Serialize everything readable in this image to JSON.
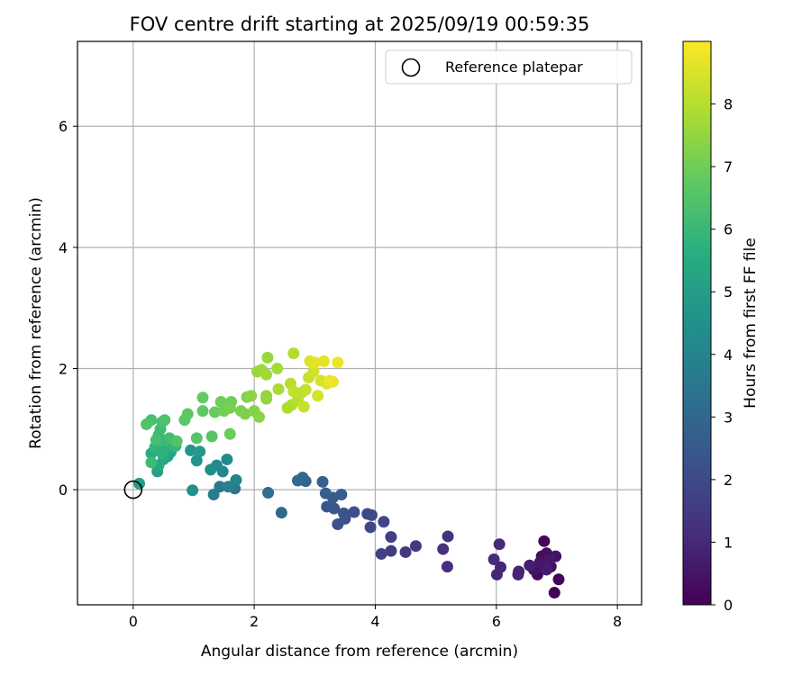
{
  "chart_data": {
    "type": "scatter",
    "title": "FOV centre drift starting at 2025/09/19 00:59:35",
    "xlabel": "Angular distance from reference (arcmin)",
    "ylabel": "Rotation from reference (arcmin)",
    "xlim": [
      -0.92,
      8.4
    ],
    "ylim": [
      -1.9,
      7.4
    ],
    "xticks": [
      0,
      2,
      4,
      6,
      8
    ],
    "yticks": [
      0,
      2,
      4,
      6
    ],
    "grid": true,
    "legend": {
      "placement": "top-right",
      "entries": [
        "Reference platepar"
      ]
    },
    "reference_point": {
      "x": 0,
      "y": 0,
      "label": "Reference platepar"
    },
    "colorbar": {
      "label": "Hours from first FF file",
      "colormap": "viridis",
      "range": [
        0,
        9
      ],
      "ticks": [
        0,
        1,
        2,
        3,
        4,
        5,
        6,
        7,
        8
      ]
    },
    "points": [
      [
        6.96,
        -1.7,
        0.05
      ],
      [
        7.03,
        -1.48,
        0.1
      ],
      [
        6.79,
        -0.85,
        0.15
      ],
      [
        6.68,
        -1.4,
        0.2
      ],
      [
        6.9,
        -1.27,
        0.25
      ],
      [
        6.75,
        -1.1,
        0.3
      ],
      [
        6.83,
        -1.05,
        0.35
      ],
      [
        6.98,
        -1.1,
        0.4
      ],
      [
        6.62,
        -1.32,
        0.45
      ],
      [
        6.78,
        -1.28,
        0.5
      ],
      [
        6.72,
        -1.2,
        0.55
      ],
      [
        6.88,
        -1.15,
        0.6
      ],
      [
        6.83,
        -1.32,
        0.7
      ],
      [
        6.55,
        -1.25,
        0.75
      ],
      [
        6.36,
        -1.4,
        0.85
      ],
      [
        6.37,
        -1.35,
        0.9
      ],
      [
        6.07,
        -1.28,
        0.95
      ],
      [
        6.01,
        -1.4,
        1.0
      ],
      [
        6.05,
        -0.9,
        1.05
      ],
      [
        5.96,
        -1.15,
        1.1
      ],
      [
        5.19,
        -1.27,
        1.2
      ],
      [
        5.12,
        -0.98,
        1.25
      ],
      [
        5.2,
        -0.77,
        1.3
      ],
      [
        4.67,
        -0.93,
        1.45
      ],
      [
        4.5,
        -1.03,
        1.55
      ],
      [
        4.26,
        -1.01,
        1.6
      ],
      [
        4.26,
        -0.78,
        1.7
      ],
      [
        4.1,
        -1.06,
        1.75
      ],
      [
        4.14,
        -0.53,
        1.85
      ],
      [
        3.92,
        -0.62,
        1.95
      ],
      [
        3.87,
        -0.4,
        2.0
      ],
      [
        3.94,
        -0.42,
        2.05
      ],
      [
        3.65,
        -0.37,
        2.15
      ],
      [
        3.5,
        -0.48,
        2.2
      ],
      [
        3.38,
        -0.57,
        2.3
      ],
      [
        3.48,
        -0.39,
        2.35
      ],
      [
        3.32,
        -0.31,
        2.4
      ],
      [
        3.2,
        -0.28,
        2.45
      ],
      [
        3.44,
        -0.08,
        2.55
      ],
      [
        3.3,
        -0.13,
        2.6
      ],
      [
        3.18,
        -0.06,
        2.7
      ],
      [
        3.13,
        0.13,
        2.8
      ],
      [
        2.85,
        0.14,
        2.9
      ],
      [
        2.8,
        0.2,
        3.0
      ],
      [
        2.72,
        0.15,
        3.05
      ],
      [
        2.45,
        -0.38,
        3.1
      ],
      [
        2.23,
        -0.05,
        3.25
      ],
      [
        1.68,
        0.02,
        3.5
      ],
      [
        1.43,
        0.05,
        3.65
      ],
      [
        1.33,
        -0.08,
        3.8
      ],
      [
        1.57,
        0.05,
        3.9
      ],
      [
        1.7,
        0.16,
        4.0
      ],
      [
        1.48,
        0.3,
        4.1
      ],
      [
        1.38,
        0.4,
        4.2
      ],
      [
        1.55,
        0.5,
        4.3
      ],
      [
        1.28,
        0.33,
        4.4
      ],
      [
        0.98,
        -0.01,
        4.5
      ],
      [
        1.05,
        0.48,
        4.6
      ],
      [
        0.95,
        0.65,
        4.7
      ],
      [
        1.1,
        0.63,
        4.8
      ],
      [
        0.1,
        0.1,
        5.0
      ],
      [
        0.4,
        0.3,
        5.1
      ],
      [
        0.57,
        0.55,
        5.2
      ],
      [
        0.5,
        0.5,
        5.3
      ],
      [
        0.62,
        0.62,
        5.35
      ],
      [
        0.42,
        0.4,
        5.45
      ],
      [
        0.54,
        0.68,
        5.55
      ],
      [
        0.3,
        0.6,
        5.6
      ],
      [
        0.63,
        0.75,
        5.7
      ],
      [
        0.48,
        0.6,
        5.75
      ],
      [
        0.36,
        0.7,
        5.85
      ],
      [
        0.7,
        0.72,
        5.9
      ],
      [
        0.42,
        0.9,
        6.0
      ],
      [
        0.52,
        0.8,
        6.05
      ],
      [
        0.3,
        0.45,
        6.1
      ],
      [
        0.45,
        1.0,
        6.15
      ],
      [
        0.6,
        0.85,
        6.2
      ],
      [
        0.38,
        0.82,
        6.25
      ],
      [
        0.48,
        1.12,
        6.3
      ],
      [
        0.3,
        1.15,
        6.35
      ],
      [
        0.52,
        1.15,
        6.4
      ],
      [
        0.22,
        1.08,
        6.45
      ],
      [
        0.72,
        0.8,
        6.5
      ],
      [
        1.05,
        0.85,
        6.55
      ],
      [
        1.3,
        0.88,
        6.6
      ],
      [
        0.85,
        1.15,
        6.65
      ],
      [
        0.9,
        1.25,
        6.7
      ],
      [
        1.15,
        1.3,
        6.75
      ],
      [
        1.15,
        1.52,
        6.8
      ],
      [
        1.35,
        1.28,
        6.85
      ],
      [
        1.6,
        0.92,
        6.9
      ],
      [
        1.45,
        1.45,
        6.95
      ],
      [
        1.62,
        1.45,
        7.0
      ],
      [
        1.5,
        1.3,
        7.05
      ],
      [
        1.6,
        1.35,
        7.1
      ],
      [
        1.78,
        1.3,
        7.15
      ],
      [
        1.85,
        1.25,
        7.2
      ],
      [
        1.88,
        1.53,
        7.25
      ],
      [
        2.0,
        1.3,
        7.3
      ],
      [
        2.08,
        1.2,
        7.35
      ],
      [
        1.95,
        1.55,
        7.4
      ],
      [
        2.2,
        1.5,
        7.45
      ],
      [
        2.2,
        1.55,
        7.5
      ],
      [
        2.22,
        2.18,
        7.55
      ],
      [
        2.05,
        1.95,
        7.6
      ],
      [
        2.12,
        1.98,
        7.65
      ],
      [
        2.2,
        1.9,
        7.7
      ],
      [
        2.38,
        2.0,
        7.75
      ],
      [
        2.4,
        1.66,
        7.8
      ],
      [
        2.55,
        1.35,
        7.85
      ],
      [
        2.62,
        1.4,
        7.9
      ],
      [
        2.65,
        2.25,
        7.95
      ],
      [
        2.6,
        1.75,
        8.0
      ],
      [
        2.72,
        1.48,
        8.05
      ],
      [
        2.78,
        1.6,
        8.1
      ],
      [
        2.65,
        1.62,
        8.15
      ],
      [
        2.85,
        1.65,
        8.2
      ],
      [
        2.82,
        1.37,
        8.25
      ],
      [
        2.9,
        1.85,
        8.3
      ],
      [
        2.98,
        1.95,
        8.35
      ],
      [
        3.05,
        1.55,
        8.4
      ],
      [
        3.1,
        1.8,
        8.45
      ],
      [
        2.92,
        2.12,
        8.5
      ],
      [
        3.2,
        1.75,
        8.55
      ],
      [
        3.0,
        2.1,
        8.6
      ],
      [
        3.15,
        2.12,
        8.65
      ],
      [
        3.3,
        1.78,
        8.7
      ],
      [
        3.38,
        2.1,
        8.75
      ],
      [
        3.25,
        1.8,
        8.8
      ]
    ]
  }
}
